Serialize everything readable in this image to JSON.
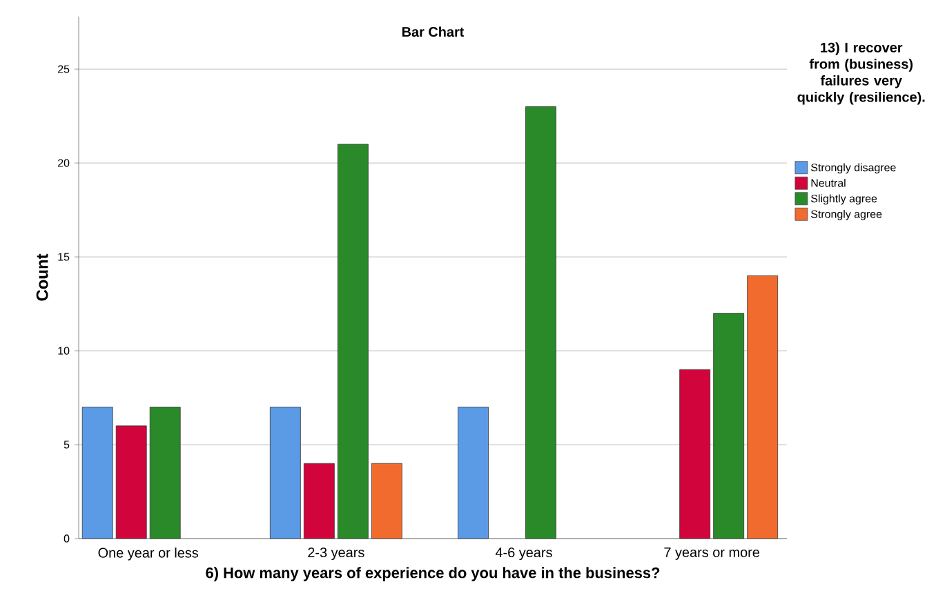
{
  "chart_data": {
    "type": "bar",
    "title": "Bar Chart",
    "xlabel": "6) How many years of experience do you have in the business?",
    "ylabel": "Count",
    "legend_title": "13) I recover from (business) failures very quickly (resilience).",
    "categories": [
      "One year or less",
      "2-3 years",
      "4-6 years",
      "7 years or more"
    ],
    "series": [
      {
        "name": "Strongly disagree",
        "color": "#5b9be6",
        "values": [
          7,
          7,
          7,
          null
        ]
      },
      {
        "name": "Neutral",
        "color": "#d2043c",
        "values": [
          6,
          4,
          null,
          9
        ]
      },
      {
        "name": "Slightly agree",
        "color": "#2a8a2a",
        "values": [
          7,
          21,
          23,
          12
        ]
      },
      {
        "name": "Strongly agree",
        "color": "#f26b2e",
        "values": [
          null,
          4,
          null,
          14
        ]
      }
    ],
    "ylim": [
      0,
      27.8
    ],
    "yticks": [
      0,
      5,
      10,
      15,
      20,
      25
    ],
    "grid": "y",
    "legend": "right"
  }
}
